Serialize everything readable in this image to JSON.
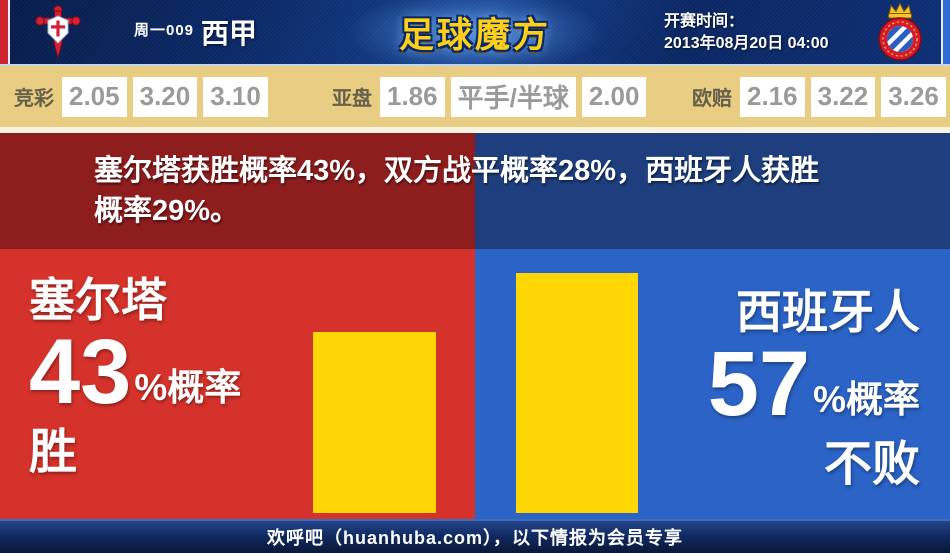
{
  "header": {
    "match_tag": "周一009",
    "league": "西甲",
    "site_logo": "足球魔方",
    "kickoff_label": "开赛时间：",
    "kickoff_time": "2013年08月20日 04:00",
    "home_crest": "celta-crest",
    "away_crest": "espanyol-crest"
  },
  "odds": {
    "groups": [
      {
        "label": "竞彩",
        "values": [
          "2.05",
          "3.20",
          "3.10"
        ]
      },
      {
        "label": "亚盘",
        "values": [
          "1.86",
          "平手/半球",
          "2.00"
        ]
      },
      {
        "label": "欧赔",
        "values": [
          "2.16",
          "3.22",
          "3.26"
        ]
      }
    ]
  },
  "prediction": {
    "line1": "塞尔塔获胜概率43%，双方战平概率28%，西班牙人获胜",
    "line2": "概率29%。",
    "probabilities": {
      "home_win_pct": 43,
      "draw_pct": 28,
      "away_win_pct": 29
    }
  },
  "chart_data": {
    "type": "bar",
    "categories": [
      "塞尔塔 胜",
      "西班牙人 不败"
    ],
    "values": [
      43,
      57
    ],
    "unit": "%",
    "bar_color": "#ffd705",
    "ylim": [
      0,
      57
    ],
    "legend_position": "none",
    "grid": false
  },
  "left_panel": {
    "team": "塞尔塔",
    "percent": "43",
    "suffix": "%概率",
    "outcome": "胜"
  },
  "right_panel": {
    "team": "西班牙人",
    "percent": "57",
    "suffix": "%概率",
    "outcome": "不败"
  },
  "footer": {
    "text": "欢呼吧（huanhuba.com），以下情报为会员专享"
  },
  "colors": {
    "header_navy": "#0b2a69",
    "edge_red": "#cd2430",
    "edge_blue": "#2e6bd3",
    "odds_tan": "#e8cd82",
    "band_dark_red": "#8e1d1e",
    "band_dark_blue": "#1e3e7e",
    "main_red": "#d5322b",
    "main_blue": "#2b63c6",
    "bar_yellow": "#ffd705",
    "logo_gold": "#ffcf1a"
  }
}
